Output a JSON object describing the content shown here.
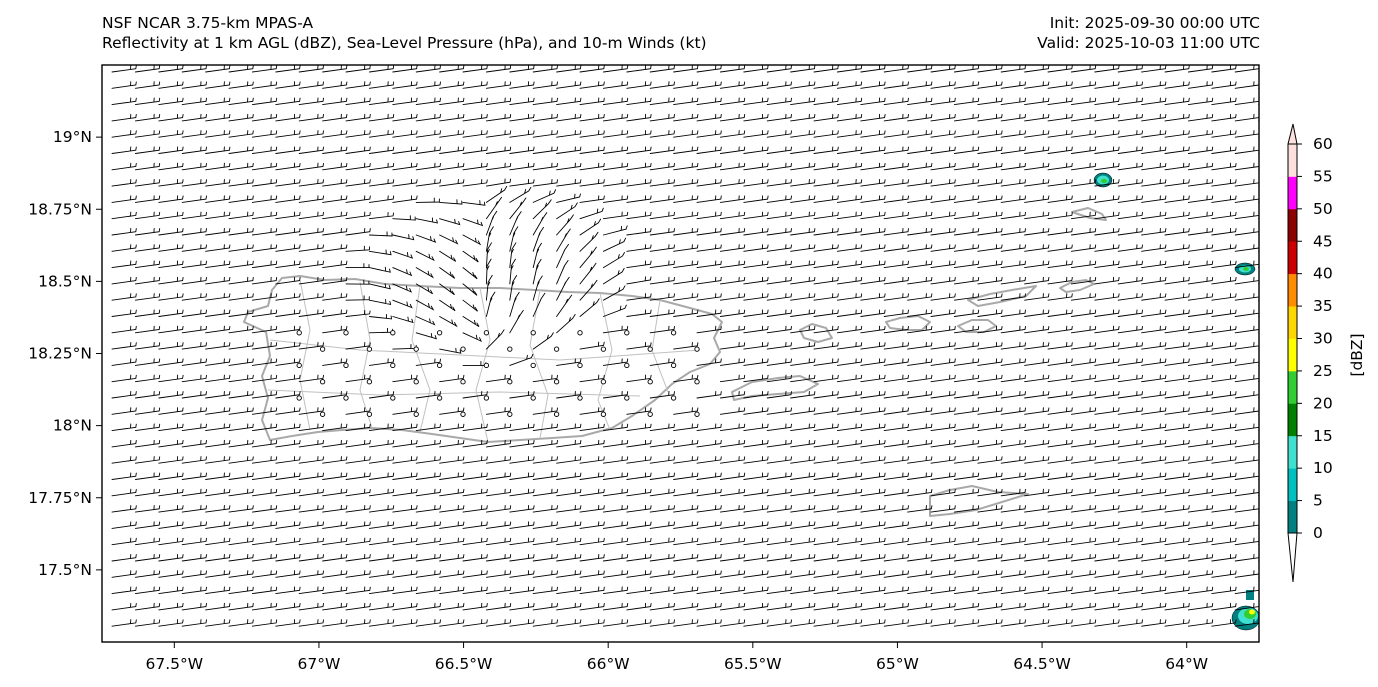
{
  "header": {
    "left_line1": "NSF NCAR 3.75-km MPAS-A",
    "left_line2": "Reflectivity at 1 km AGL (dBZ), Sea-Level Pressure (hPa), and 10-m Winds (kt)",
    "right_line1": "Init: 2025-09-30 00:00 UTC",
    "right_line2": "Valid: 2025-10-03 11:00 UTC"
  },
  "map": {
    "lon_range": [
      -67.75,
      -63.75
    ],
    "lat_range": [
      17.25,
      19.25
    ],
    "x_ticks": [
      {
        "value": -67.5,
        "label": "67.5°W"
      },
      {
        "value": -67.0,
        "label": "67°W"
      },
      {
        "value": -66.5,
        "label": "66.5°W"
      },
      {
        "value": -66.0,
        "label": "66°W"
      },
      {
        "value": -65.5,
        "label": "65.5°W"
      },
      {
        "value": -65.0,
        "label": "65°W"
      },
      {
        "value": -64.5,
        "label": "64.5°W"
      },
      {
        "value": -64.0,
        "label": "64°W"
      }
    ],
    "y_ticks": [
      {
        "value": 19.0,
        "label": "19°N"
      },
      {
        "value": 18.75,
        "label": "18.75°N"
      },
      {
        "value": 18.5,
        "label": "18.5°N"
      },
      {
        "value": 18.25,
        "label": "18.25°N"
      },
      {
        "value": 18.0,
        "label": "18°N"
      },
      {
        "value": 17.75,
        "label": "17.75°N"
      },
      {
        "value": 17.5,
        "label": "17.5°N"
      }
    ],
    "wind_barb_color": "#000000",
    "coastline_color": "#a9a9a9"
  },
  "colorbar": {
    "label": "[dBZ]",
    "ticks": [
      "0",
      "5",
      "10",
      "15",
      "20",
      "25",
      "30",
      "35",
      "40",
      "45",
      "50",
      "55",
      "60"
    ],
    "colors": [
      "#008080",
      "#00bfbf",
      "#40e0d0",
      "#008000",
      "#32cd32",
      "#ffff00",
      "#ffd700",
      "#ff8c00",
      "#cc0000",
      "#8b0000",
      "#ff00ff",
      "#fde0dd"
    ]
  }
}
